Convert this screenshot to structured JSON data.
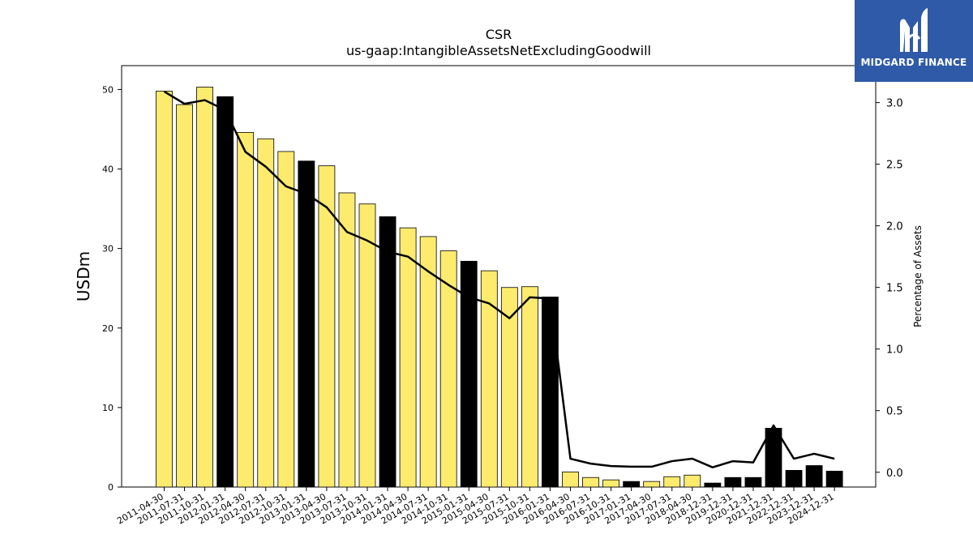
{
  "logo": {
    "text": "MIDGARD FINANCE",
    "icon": "midgard-logo-icon",
    "background": "#2f5aa8"
  },
  "colors": {
    "bar_regular": "#fdeb6e",
    "bar_annual": "#000000",
    "line": "#000000"
  },
  "chart_data": {
    "type": "bar",
    "title": "CSR",
    "subtitle": "us-gaap:IntangibleAssetsNetExcludingGoodwill",
    "ylabel": "USDm",
    "y2label": "Percentage of Assets",
    "ylim": [
      0,
      53
    ],
    "y2lim": [
      -0.12,
      3.3
    ],
    "yticks": [
      0,
      10,
      20,
      30,
      40,
      50
    ],
    "y2ticks": [
      0.0,
      0.5,
      1.0,
      1.5,
      2.0,
      2.5,
      3.0
    ],
    "categories": [
      "2011-04-30",
      "2011-07-31",
      "2011-10-31",
      "2012-01-31",
      "2012-04-30",
      "2012-07-31",
      "2012-10-31",
      "2013-01-31",
      "2013-04-30",
      "2013-07-31",
      "2013-10-31",
      "2014-01-31",
      "2014-04-30",
      "2014-07-31",
      "2014-10-31",
      "2015-01-31",
      "2015-04-30",
      "2015-07-31",
      "2015-10-31",
      "2016-01-31",
      "2016-04-30",
      "2016-07-31",
      "2016-10-31",
      "2017-01-31",
      "2017-04-30",
      "2017-07-31",
      "2018-04-30",
      "2018-12-31",
      "2019-12-31",
      "2020-12-31",
      "2021-12-31",
      "2022-12-31",
      "2023-12-31",
      "2024-12-31"
    ],
    "series": [
      {
        "type": "bar",
        "values": [
          49.8,
          48.1,
          50.3,
          49.1,
          44.6,
          43.8,
          42.2,
          41.0,
          40.4,
          37.0,
          35.6,
          34.0,
          32.6,
          31.5,
          29.7,
          28.4,
          27.2,
          25.1,
          25.2,
          23.9,
          1.9,
          1.2,
          0.9,
          0.7,
          0.7,
          1.3,
          1.5,
          0.5,
          1.2,
          1.2,
          7.4,
          2.1,
          2.7,
          2.0
        ],
        "annual": [
          false,
          false,
          false,
          true,
          false,
          false,
          false,
          true,
          false,
          false,
          false,
          true,
          false,
          false,
          false,
          true,
          false,
          false,
          false,
          true,
          false,
          false,
          false,
          true,
          false,
          false,
          false,
          true,
          true,
          true,
          true,
          true,
          true,
          true
        ]
      },
      {
        "type": "line",
        "axis": "right",
        "values": [
          3.09,
          2.99,
          3.02,
          2.94,
          2.6,
          2.48,
          2.32,
          2.26,
          2.15,
          1.95,
          1.88,
          1.79,
          1.75,
          1.63,
          1.52,
          1.42,
          1.37,
          1.25,
          1.42,
          1.41,
          0.11,
          0.07,
          0.05,
          0.045,
          0.045,
          0.09,
          0.11,
          0.04,
          0.09,
          0.08,
          0.38,
          0.11,
          0.15,
          0.11
        ]
      }
    ]
  }
}
